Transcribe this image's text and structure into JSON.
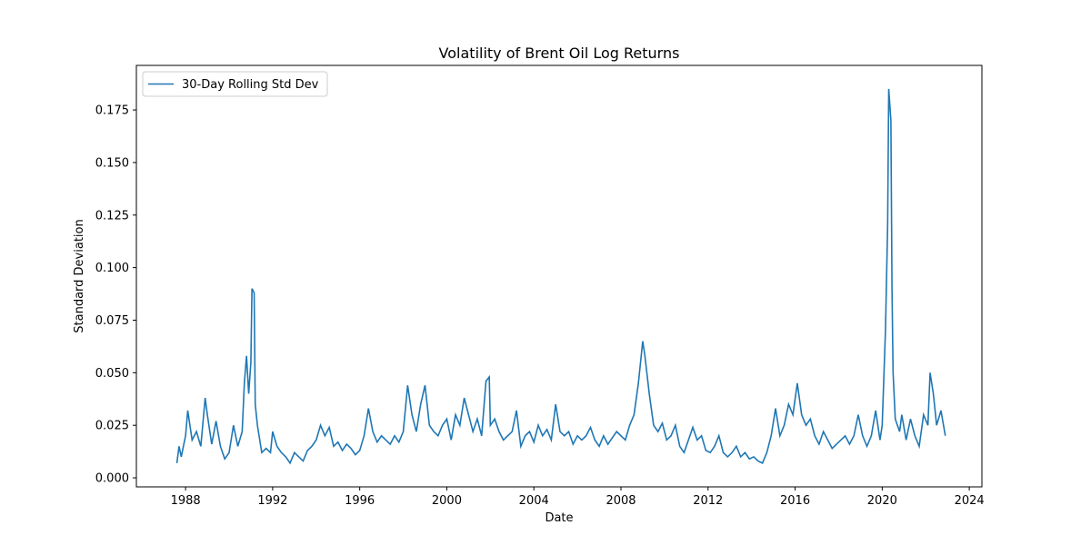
{
  "chart_data": {
    "type": "line",
    "title": "Volatility of Brent Oil Log Returns",
    "xlabel": "Date",
    "ylabel": "Standard Deviation",
    "legend": "upper left",
    "x": [
      1987.6,
      1987.7,
      1987.8,
      1988.0,
      1988.1,
      1988.3,
      1988.5,
      1988.7,
      1988.9,
      1989.0,
      1989.2,
      1989.4,
      1989.6,
      1989.8,
      1990.0,
      1990.2,
      1990.4,
      1990.6,
      1990.7,
      1990.8,
      1990.9,
      1991.0,
      1991.05,
      1991.15,
      1991.2,
      1991.3,
      1991.5,
      1991.7,
      1991.9,
      1992.0,
      1992.2,
      1992.4,
      1992.6,
      1992.8,
      1993.0,
      1993.2,
      1993.4,
      1993.6,
      1993.8,
      1994.0,
      1994.2,
      1994.4,
      1994.6,
      1994.8,
      1995.0,
      1995.2,
      1995.4,
      1995.6,
      1995.8,
      1996.0,
      1996.2,
      1996.4,
      1996.6,
      1996.8,
      1997.0,
      1997.2,
      1997.4,
      1997.6,
      1997.8,
      1998.0,
      1998.2,
      1998.4,
      1998.6,
      1998.8,
      1999.0,
      1999.2,
      1999.4,
      1999.6,
      1999.8,
      2000.0,
      2000.2,
      2000.4,
      2000.6,
      2000.8,
      2001.0,
      2001.2,
      2001.4,
      2001.6,
      2001.8,
      2001.95,
      2002.0,
      2002.2,
      2002.4,
      2002.6,
      2002.8,
      2003.0,
      2003.2,
      2003.4,
      2003.6,
      2003.8,
      2004.0,
      2004.2,
      2004.4,
      2004.6,
      2004.8,
      2005.0,
      2005.2,
      2005.4,
      2005.6,
      2005.8,
      2006.0,
      2006.2,
      2006.4,
      2006.6,
      2006.8,
      2007.0,
      2007.2,
      2007.4,
      2007.6,
      2007.8,
      2008.0,
      2008.2,
      2008.4,
      2008.6,
      2008.8,
      2009.0,
      2009.1,
      2009.3,
      2009.5,
      2009.7,
      2009.9,
      2010.1,
      2010.3,
      2010.5,
      2010.7,
      2010.9,
      2011.1,
      2011.3,
      2011.5,
      2011.7,
      2011.9,
      2012.1,
      2012.3,
      2012.5,
      2012.7,
      2012.9,
      2013.1,
      2013.3,
      2013.5,
      2013.7,
      2013.9,
      2014.1,
      2014.3,
      2014.5,
      2014.7,
      2014.9,
      2015.1,
      2015.3,
      2015.5,
      2015.7,
      2015.9,
      2016.1,
      2016.3,
      2016.5,
      2016.7,
      2016.9,
      2017.1,
      2017.3,
      2017.5,
      2017.7,
      2017.9,
      2018.1,
      2018.3,
      2018.5,
      2018.7,
      2018.9,
      2019.1,
      2019.3,
      2019.5,
      2019.7,
      2019.9,
      2020.0,
      2020.15,
      2020.25,
      2020.3,
      2020.4,
      2020.45,
      2020.5,
      2020.6,
      2020.8,
      2020.9,
      2021.1,
      2021.3,
      2021.5,
      2021.7,
      2021.9,
      2022.1,
      2022.2,
      2022.35,
      2022.5,
      2022.7,
      2022.9
    ],
    "series": [
      {
        "name": "30-Day Rolling Std Dev",
        "color": "#1f77b4",
        "values": [
          0.007,
          0.015,
          0.01,
          0.02,
          0.032,
          0.018,
          0.022,
          0.015,
          0.038,
          0.03,
          0.016,
          0.027,
          0.015,
          0.009,
          0.012,
          0.025,
          0.015,
          0.022,
          0.045,
          0.058,
          0.04,
          0.055,
          0.09,
          0.088,
          0.035,
          0.025,
          0.012,
          0.014,
          0.012,
          0.022,
          0.015,
          0.012,
          0.01,
          0.007,
          0.012,
          0.01,
          0.008,
          0.013,
          0.015,
          0.018,
          0.025,
          0.02,
          0.024,
          0.015,
          0.017,
          0.013,
          0.016,
          0.014,
          0.011,
          0.013,
          0.02,
          0.033,
          0.022,
          0.017,
          0.02,
          0.018,
          0.016,
          0.02,
          0.017,
          0.022,
          0.044,
          0.03,
          0.022,
          0.035,
          0.044,
          0.025,
          0.022,
          0.02,
          0.025,
          0.028,
          0.018,
          0.03,
          0.025,
          0.038,
          0.03,
          0.022,
          0.028,
          0.02,
          0.046,
          0.048,
          0.025,
          0.028,
          0.022,
          0.018,
          0.02,
          0.022,
          0.032,
          0.015,
          0.02,
          0.022,
          0.017,
          0.025,
          0.02,
          0.023,
          0.018,
          0.035,
          0.022,
          0.02,
          0.022,
          0.016,
          0.02,
          0.018,
          0.02,
          0.024,
          0.018,
          0.015,
          0.02,
          0.016,
          0.019,
          0.022,
          0.02,
          0.018,
          0.025,
          0.03,
          0.045,
          0.065,
          0.058,
          0.04,
          0.025,
          0.022,
          0.026,
          0.018,
          0.02,
          0.025,
          0.015,
          0.012,
          0.018,
          0.024,
          0.018,
          0.02,
          0.013,
          0.012,
          0.015,
          0.02,
          0.012,
          0.01,
          0.012,
          0.015,
          0.01,
          0.012,
          0.009,
          0.01,
          0.008,
          0.007,
          0.012,
          0.02,
          0.033,
          0.02,
          0.025,
          0.035,
          0.03,
          0.045,
          0.03,
          0.025,
          0.028,
          0.02,
          0.016,
          0.022,
          0.018,
          0.014,
          0.016,
          0.018,
          0.02,
          0.016,
          0.02,
          0.03,
          0.02,
          0.015,
          0.02,
          0.032,
          0.018,
          0.025,
          0.07,
          0.12,
          0.185,
          0.17,
          0.09,
          0.05,
          0.028,
          0.022,
          0.03,
          0.018,
          0.028,
          0.02,
          0.015,
          0.03,
          0.025,
          0.05,
          0.04,
          0.025,
          0.032,
          0.02
        ]
      }
    ],
    "xlim": [
      1985.74,
      2024.58
    ],
    "xticks": [
      1988,
      1992,
      1996,
      2000,
      2004,
      2008,
      2012,
      2016,
      2020,
      2024
    ],
    "ylim": [
      -0.0043,
      0.1962
    ],
    "yticks": [
      {
        "value": 0,
        "label": "0.000"
      },
      {
        "value": 0.025,
        "label": "0.025"
      },
      {
        "value": 0.05,
        "label": "0.050"
      },
      {
        "value": 0.075,
        "label": "0.075"
      },
      {
        "value": 0.1,
        "label": "0.100"
      },
      {
        "value": 0.125,
        "label": "0.125"
      },
      {
        "value": 0.15,
        "label": "0.150"
      },
      {
        "value": 0.175,
        "label": "0.175"
      }
    ]
  }
}
